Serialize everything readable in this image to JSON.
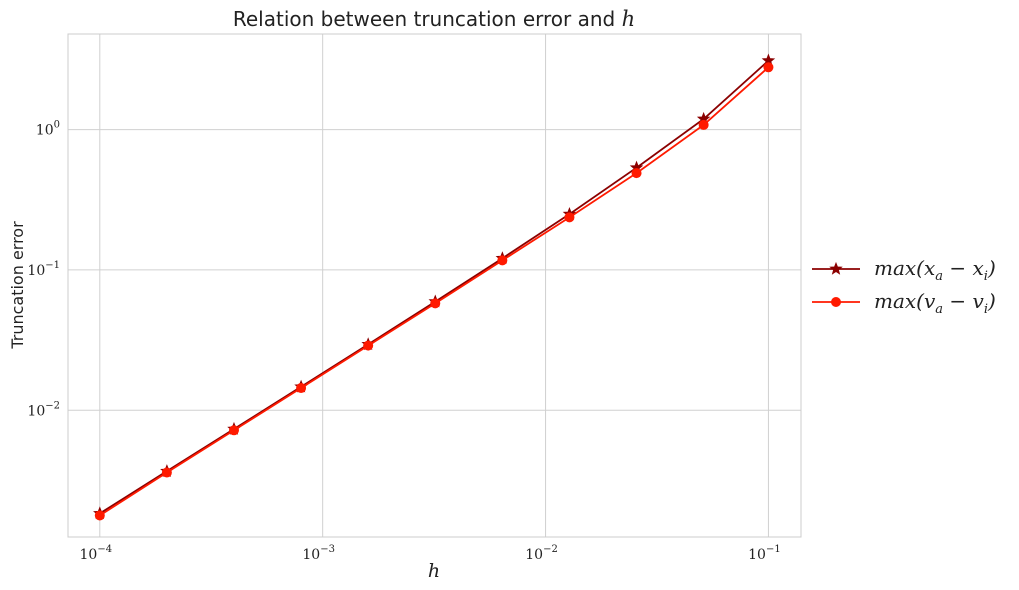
{
  "chart_data": {
    "type": "line",
    "title_prefix": "Relation between truncation error and ",
    "title_var": "h",
    "xlabel": "h",
    "ylabel": "Truncation error",
    "xscale": "log",
    "yscale": "log",
    "xlim": [
      7.2e-05,
      0.14
    ],
    "ylim": [
      0.00125,
      4.8
    ],
    "grid": true,
    "legend_position": "right-outside",
    "x_ticks": [
      {
        "value": 0.0001,
        "base": "10",
        "exp": "−4"
      },
      {
        "value": 0.001,
        "base": "10",
        "exp": "−3"
      },
      {
        "value": 0.01,
        "base": "10",
        "exp": "−2"
      },
      {
        "value": 0.1,
        "base": "10",
        "exp": "−1"
      }
    ],
    "y_ticks": [
      {
        "value": 0.01,
        "base": "10",
        "exp": "−2"
      },
      {
        "value": 0.1,
        "base": "10",
        "exp": "−1"
      },
      {
        "value": 1,
        "base": "10",
        "exp": "0"
      }
    ],
    "x": [
      0.0001,
      0.0002,
      0.0004,
      0.0008,
      0.0016,
      0.0032,
      0.0064,
      0.0128,
      0.0256,
      0.0512,
      0.1
    ],
    "series": [
      {
        "name": "max(x_a − x_i)",
        "legend": {
          "pre": "max(x",
          "sub1": "a",
          "mid": " − x",
          "sub2": "i",
          "post": ")"
        },
        "color": "#8b0000",
        "marker": "star",
        "values": [
          0.00184,
          0.00368,
          0.00735,
          0.0147,
          0.0295,
          0.0595,
          0.121,
          0.25,
          0.535,
          1.19,
          3.1
        ]
      },
      {
        "name": "max(v_a − v_i)",
        "legend": {
          "pre": "max(v",
          "sub1": "a",
          "mid": " − v",
          "sub2": "i",
          "post": ")"
        },
        "color": "#ff1a00",
        "marker": "circle",
        "values": [
          0.00178,
          0.0036,
          0.0072,
          0.0144,
          0.0289,
          0.0578,
          0.117,
          0.237,
          0.49,
          1.08,
          2.78
        ]
      }
    ]
  }
}
